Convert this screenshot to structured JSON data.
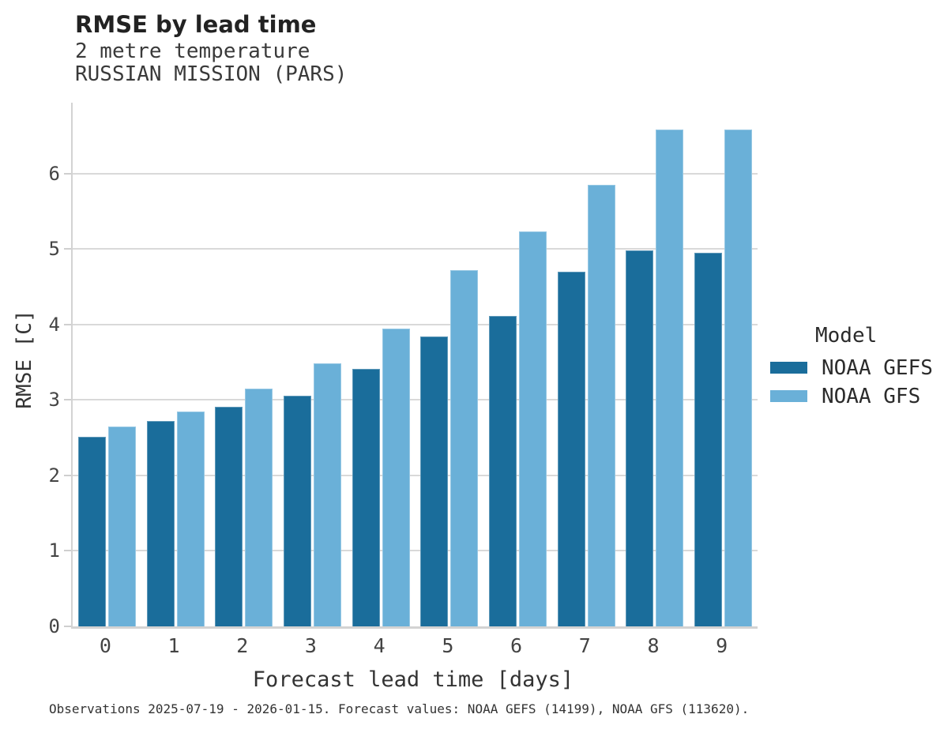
{
  "title": "RMSE by lead time",
  "subtitle_line1": "2 metre temperature",
  "subtitle_line2": "RUSSIAN MISSION (PARS)",
  "caption": "Observations 2025-07-19 - 2026-01-15. Forecast values: NOAA GEFS (14199), NOAA GFS (113620).",
  "legend": {
    "title": "Model",
    "items": [
      {
        "label": "NOAA GEFS",
        "color": "#1a6d9b"
      },
      {
        "label": "NOAA GFS",
        "color": "#6ab0d8"
      }
    ]
  },
  "colors": {
    "gefs": "#1a6d9b",
    "gfs": "#6ab0d8",
    "gridline": "#d9d9d9",
    "axis": "#d3d3d3"
  },
  "chart_data": {
    "type": "bar",
    "title": "RMSE by lead time",
    "subtitle": [
      "2 metre temperature",
      "RUSSIAN MISSION (PARS)"
    ],
    "categories": [
      "0",
      "1",
      "2",
      "3",
      "4",
      "5",
      "6",
      "7",
      "8",
      "9"
    ],
    "series": [
      {
        "name": "NOAA GEFS",
        "color": "#1a6d9b",
        "values": [
          2.51,
          2.72,
          2.91,
          3.06,
          3.41,
          3.84,
          4.11,
          4.7,
          4.98,
          4.95
        ]
      },
      {
        "name": "NOAA GFS",
        "color": "#6ab0d8",
        "values": [
          2.65,
          2.85,
          3.15,
          3.49,
          3.95,
          4.72,
          5.23,
          5.85,
          6.58,
          6.58
        ]
      }
    ],
    "xlabel": "Forecast lead time [days]",
    "ylabel": "RMSE [C]",
    "ylim": [
      0,
      6.94
    ],
    "yticks": [
      0,
      1,
      2,
      3,
      4,
      5,
      6
    ],
    "grid": true,
    "legend_title": "Model",
    "legend_position": "right"
  }
}
